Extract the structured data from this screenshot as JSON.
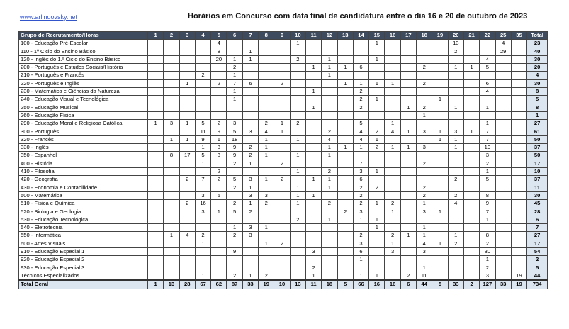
{
  "header": {
    "link": "www.arlindovsky.net",
    "title": "Horários em Concurso com data final de candidatura entre o dia 16 e 20 de outubro de 2023"
  },
  "table": {
    "first_header": "Grupo de Recrutamento/Horas",
    "columns": [
      "1",
      "2",
      "3",
      "4",
      "5",
      "6",
      "7",
      "8",
      "9",
      "10",
      "11",
      "12",
      "13",
      "14",
      "15",
      "16",
      "17",
      "18",
      "19",
      "20",
      "21",
      "22",
      "25",
      "35"
    ],
    "total_header": "Total",
    "rows": [
      {
        "group": "100 - Educação Pré-Escolar",
        "cells": {
          "5": "4",
          "10": "1",
          "15": "1",
          "20": "13",
          "25": "4"
        },
        "total": "23"
      },
      {
        "group": "110 - 1º Ciclo do Ensino Básico",
        "cells": {
          "5": "8",
          "7": "1",
          "20": "2",
          "25": "29"
        },
        "total": "40"
      },
      {
        "group": "120 - Inglês do 1.º Ciclo do Ensino Básico",
        "cells": {
          "5": "20",
          "6": "1",
          "7": "1",
          "10": "2",
          "12": "1",
          "15": "1",
          "22": "4"
        },
        "total": "30"
      },
      {
        "group": "200 - Português e Estudos Sociais/História",
        "cells": {
          "6": "2",
          "11": "1",
          "12": "1",
          "13": "1",
          "14": "6",
          "18": "2",
          "20": "1",
          "21": "1",
          "22": "5"
        },
        "total": "20"
      },
      {
        "group": "210 - Português e Francês",
        "cells": {
          "4": "2",
          "6": "1",
          "12": "1"
        },
        "total": "4"
      },
      {
        "group": "220 - Português e Inglês",
        "cells": {
          "3": "1",
          "5": "2",
          "6": "7",
          "7": "6",
          "9": "2",
          "13": "1",
          "14": "1",
          "15": "1",
          "16": "1",
          "18": "2",
          "22": "6"
        },
        "total": "30"
      },
      {
        "group": "230 - Matemática e Ciências da Natureza",
        "cells": {
          "6": "1",
          "11": "1",
          "14": "2",
          "22": "4"
        },
        "total": "8"
      },
      {
        "group": "240 - Educação Visual e Tecnológica",
        "cells": {
          "6": "1",
          "14": "2",
          "15": "1",
          "19": "1"
        },
        "total": "5"
      },
      {
        "group": "250 - Educação Musical",
        "cells": {
          "11": "1",
          "14": "2",
          "17": "1",
          "18": "2",
          "20": "1",
          "22": "1"
        },
        "total": "8"
      },
      {
        "group": "260 - Educação Física",
        "cells": {
          "18": "1"
        },
        "total": "1"
      },
      {
        "group": "290 - Educação Moral e Religiosa Católica",
        "cells": {
          "1": "1",
          "2": "3",
          "3": "1",
          "4": "5",
          "5": "2",
          "6": "3",
          "8": "2",
          "9": "1",
          "10": "2",
          "14": "5",
          "16": "1",
          "22": "1"
        },
        "total": "27"
      },
      {
        "group": "300 - Português",
        "cells": {
          "4": "11",
          "5": "9",
          "6": "5",
          "7": "3",
          "8": "4",
          "9": "1",
          "12": "2",
          "14": "4",
          "15": "2",
          "16": "4",
          "17": "1",
          "18": "3",
          "19": "1",
          "20": "3",
          "21": "1",
          "22": "7"
        },
        "total": "61"
      },
      {
        "group": "320 - Francês",
        "cells": {
          "2": "1",
          "3": "1",
          "4": "9",
          "5": "1",
          "6": "18",
          "8": "1",
          "10": "1",
          "12": "4",
          "14": "4",
          "15": "1",
          "19": "1",
          "20": "1",
          "22": "7"
        },
        "total": "50"
      },
      {
        "group": "330 - Inglês",
        "cells": {
          "4": "1",
          "5": "3",
          "6": "9",
          "7": "2",
          "8": "1",
          "12": "1",
          "13": "1",
          "14": "1",
          "15": "2",
          "16": "1",
          "17": "1",
          "18": "3",
          "20": "1",
          "22": "10"
        },
        "total": "37"
      },
      {
        "group": "350 - Espanhol",
        "cells": {
          "2": "8",
          "3": "17",
          "4": "5",
          "5": "3",
          "6": "9",
          "7": "2",
          "8": "1",
          "10": "1",
          "12": "1",
          "22": "3"
        },
        "total": "50"
      },
      {
        "group": "400 - História",
        "cells": {
          "4": "1",
          "6": "2",
          "7": "1",
          "9": "2",
          "14": "7",
          "18": "2",
          "22": "2"
        },
        "total": "17"
      },
      {
        "group": "410 - Filosofia",
        "cells": {
          "5": "2",
          "10": "1",
          "12": "2",
          "14": "3",
          "15": "1",
          "22": "1"
        },
        "total": "10"
      },
      {
        "group": "420 - Geografia",
        "cells": {
          "3": "2",
          "4": "7",
          "5": "2",
          "6": "5",
          "7": "3",
          "8": "1",
          "9": "2",
          "11": "1",
          "12": "1",
          "14": "6",
          "20": "2",
          "22": "5"
        },
        "total": "37"
      },
      {
        "group": "430 - Economia e Contabilidade",
        "cells": {
          "6": "2",
          "7": "1",
          "10": "1",
          "12": "1",
          "14": "2",
          "15": "2",
          "18": "2"
        },
        "total": "11"
      },
      {
        "group": "500 - Matemática",
        "cells": {
          "4": "3",
          "5": "5",
          "7": "3",
          "8": "3",
          "10": "1",
          "11": "1",
          "14": "2",
          "18": "2",
          "20": "2",
          "22": "8"
        },
        "total": "30"
      },
      {
        "group": "510 - Física e Química",
        "cells": {
          "3": "2",
          "4": "16",
          "6": "2",
          "7": "1",
          "8": "2",
          "10": "1",
          "12": "2",
          "14": "2",
          "15": "1",
          "16": "2",
          "18": "1",
          "20": "4",
          "22": "9"
        },
        "total": "45"
      },
      {
        "group": "520 - Biologia e Geologia",
        "cells": {
          "4": "3",
          "5": "1",
          "6": "5",
          "7": "2",
          "13": "2",
          "14": "3",
          "16": "1",
          "18": "3",
          "19": "1",
          "22": "7"
        },
        "total": "28"
      },
      {
        "group": "530 - Educação Tecnológica",
        "cells": {
          "10": "2",
          "12": "1",
          "14": "1",
          "15": "1",
          "22": "1"
        },
        "total": "6"
      },
      {
        "group": "540 - Eletrotecnia",
        "cells": {
          "6": "1",
          "7": "3",
          "8": "1",
          "15": "1",
          "18": "1"
        },
        "total": "7"
      },
      {
        "group": "550 - Informática",
        "cells": {
          "2": "1",
          "3": "4",
          "4": "2",
          "6": "2",
          "7": "3",
          "14": "2",
          "16": "2",
          "17": "1",
          "18": "1",
          "20": "1",
          "22": "8"
        },
        "total": "27"
      },
      {
        "group": "600 - Artes Visuais",
        "cells": {
          "4": "1",
          "8": "1",
          "9": "2",
          "14": "3",
          "16": "1",
          "18": "4",
          "19": "1",
          "20": "2",
          "22": "2"
        },
        "total": "17"
      },
      {
        "group": "910 - Educação Especial 1",
        "cells": {
          "6": "9",
          "11": "3",
          "14": "6",
          "16": "3",
          "18": "3",
          "22": "30"
        },
        "total": "54"
      },
      {
        "group": "920 - Educação Especial 2",
        "cells": {
          "14": "1",
          "22": "1"
        },
        "total": "2"
      },
      {
        "group": "930 - Educação Especial 3",
        "cells": {
          "11": "2",
          "18": "1",
          "22": "2"
        },
        "total": "5"
      },
      {
        "group": "Técnicos Especializados",
        "cells": {
          "4": "1",
          "6": "2",
          "7": "1",
          "8": "2",
          "11": "1",
          "14": "1",
          "15": "1",
          "17": "2",
          "18": "11",
          "22": "3",
          "35": "19"
        },
        "total": "44"
      }
    ],
    "grand_total": {
      "label": "Total Geral",
      "cells": {
        "1": "1",
        "2": "13",
        "3": "28",
        "4": "67",
        "5": "62",
        "6": "87",
        "7": "33",
        "8": "19",
        "9": "10",
        "10": "13",
        "11": "11",
        "12": "18",
        "13": "5",
        "14": "66",
        "15": "16",
        "16": "16",
        "17": "6",
        "18": "44",
        "19": "5",
        "20": "33",
        "21": "2",
        "22": "127",
        "25": "33",
        "35": "19"
      },
      "total": "734"
    }
  }
}
